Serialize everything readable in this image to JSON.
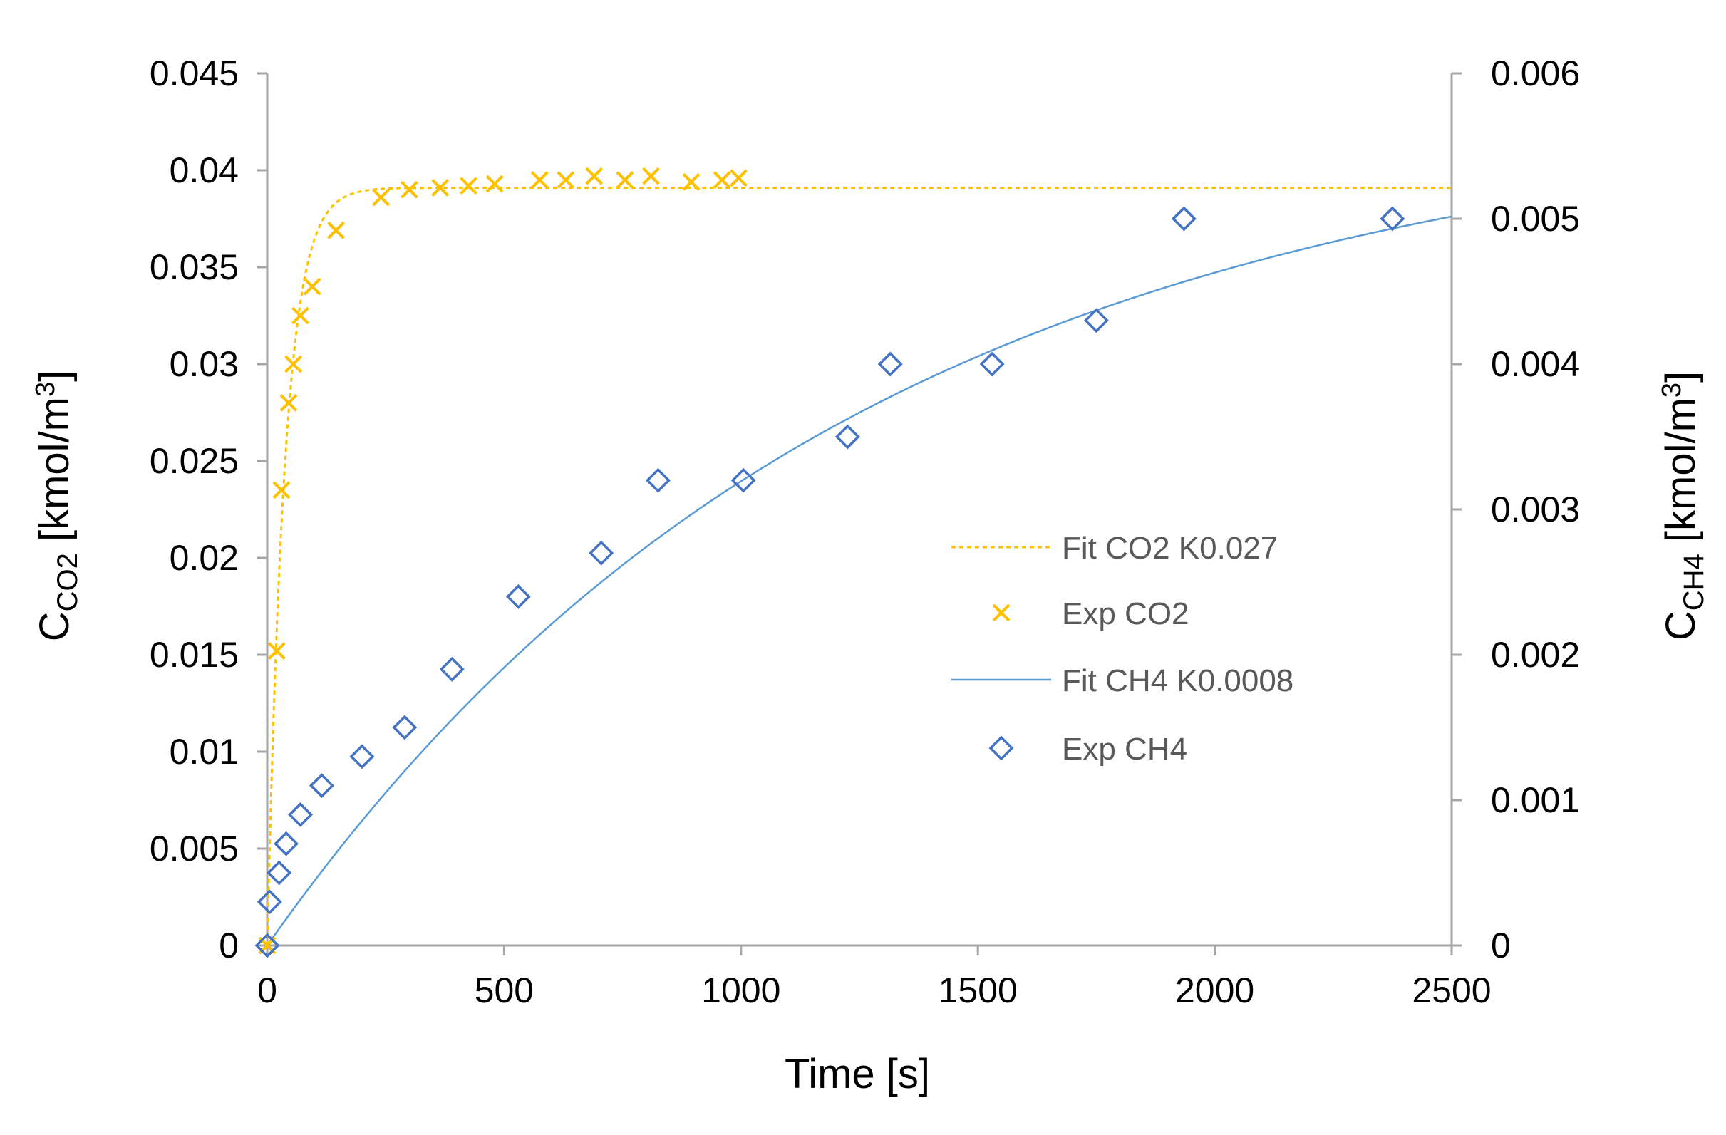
{
  "chart_data": {
    "type": "scatter",
    "xlabel": "Time [s]",
    "ylabel": {
      "base": "C",
      "sub": "CO2",
      "unit": "[kmol/m",
      "sup": "3",
      "close": "]"
    },
    "y2label": {
      "base": "C",
      "sub": "CH4",
      "unit": "[kmol/m",
      "sup": "3",
      "close": "]"
    },
    "xlim": [
      0,
      2500
    ],
    "ylim": [
      0,
      0.045
    ],
    "y2lim": [
      0,
      0.006
    ],
    "xticks": [
      "0",
      "500",
      "1000",
      "1500",
      "2000",
      "2500"
    ],
    "yticks": [
      "0",
      "0.005",
      "0.01",
      "0.015",
      "0.02",
      "0.025",
      "0.03",
      "0.035",
      "0.04",
      "0.045"
    ],
    "y2ticks": [
      "0",
      "0.001",
      "0.002",
      "0.003",
      "0.004",
      "0.005",
      "0.006"
    ],
    "grid": false,
    "legend_position": "center-right",
    "series": [
      {
        "name": "Fit CO2 K0.027",
        "kind": "line",
        "style": "dashed",
        "color": "#FFC000",
        "axis": "left",
        "model": {
          "type": "first-order",
          "c_max": 0.0391,
          "k": 0.027
        }
      },
      {
        "name": "Exp CO2",
        "kind": "markers",
        "marker": "x",
        "color": "#FFC000",
        "axis": "left",
        "x": [
          0,
          20,
          30,
          45,
          55,
          70,
          95,
          145,
          240,
          300,
          365,
          425,
          480,
          575,
          630,
          690,
          755,
          810,
          895,
          960,
          995
        ],
        "y": [
          0,
          0.0152,
          0.0235,
          0.028,
          0.03,
          0.0325,
          0.034,
          0.0369,
          0.0386,
          0.039,
          0.0391,
          0.0392,
          0.0393,
          0.0395,
          0.0395,
          0.0397,
          0.0395,
          0.0397,
          0.0394,
          0.0395,
          0.0396
        ]
      },
      {
        "name": "Fit CH4 K0.0008",
        "kind": "line",
        "style": "solid",
        "color": "#5B9BD5",
        "axis": "right",
        "model": {
          "type": "first-order",
          "c_max": 0.0058,
          "k": 0.0008
        }
      },
      {
        "name": "Exp CH4",
        "kind": "markers",
        "marker": "diamond",
        "color": "#4472C4",
        "axis": "right",
        "x": [
          0,
          5,
          25,
          40,
          70,
          115,
          200,
          290,
          390,
          530,
          705,
          825,
          1005,
          1225,
          1315,
          1530,
          1750,
          1935,
          2375
        ],
        "y": [
          0,
          0.0003,
          0.0005,
          0.0007,
          0.0009,
          0.0011,
          0.0013,
          0.0015,
          0.0019,
          0.0024,
          0.0027,
          0.0032,
          0.0032,
          0.0035,
          0.004,
          0.004,
          0.0043,
          0.005,
          0.005
        ]
      }
    ]
  }
}
